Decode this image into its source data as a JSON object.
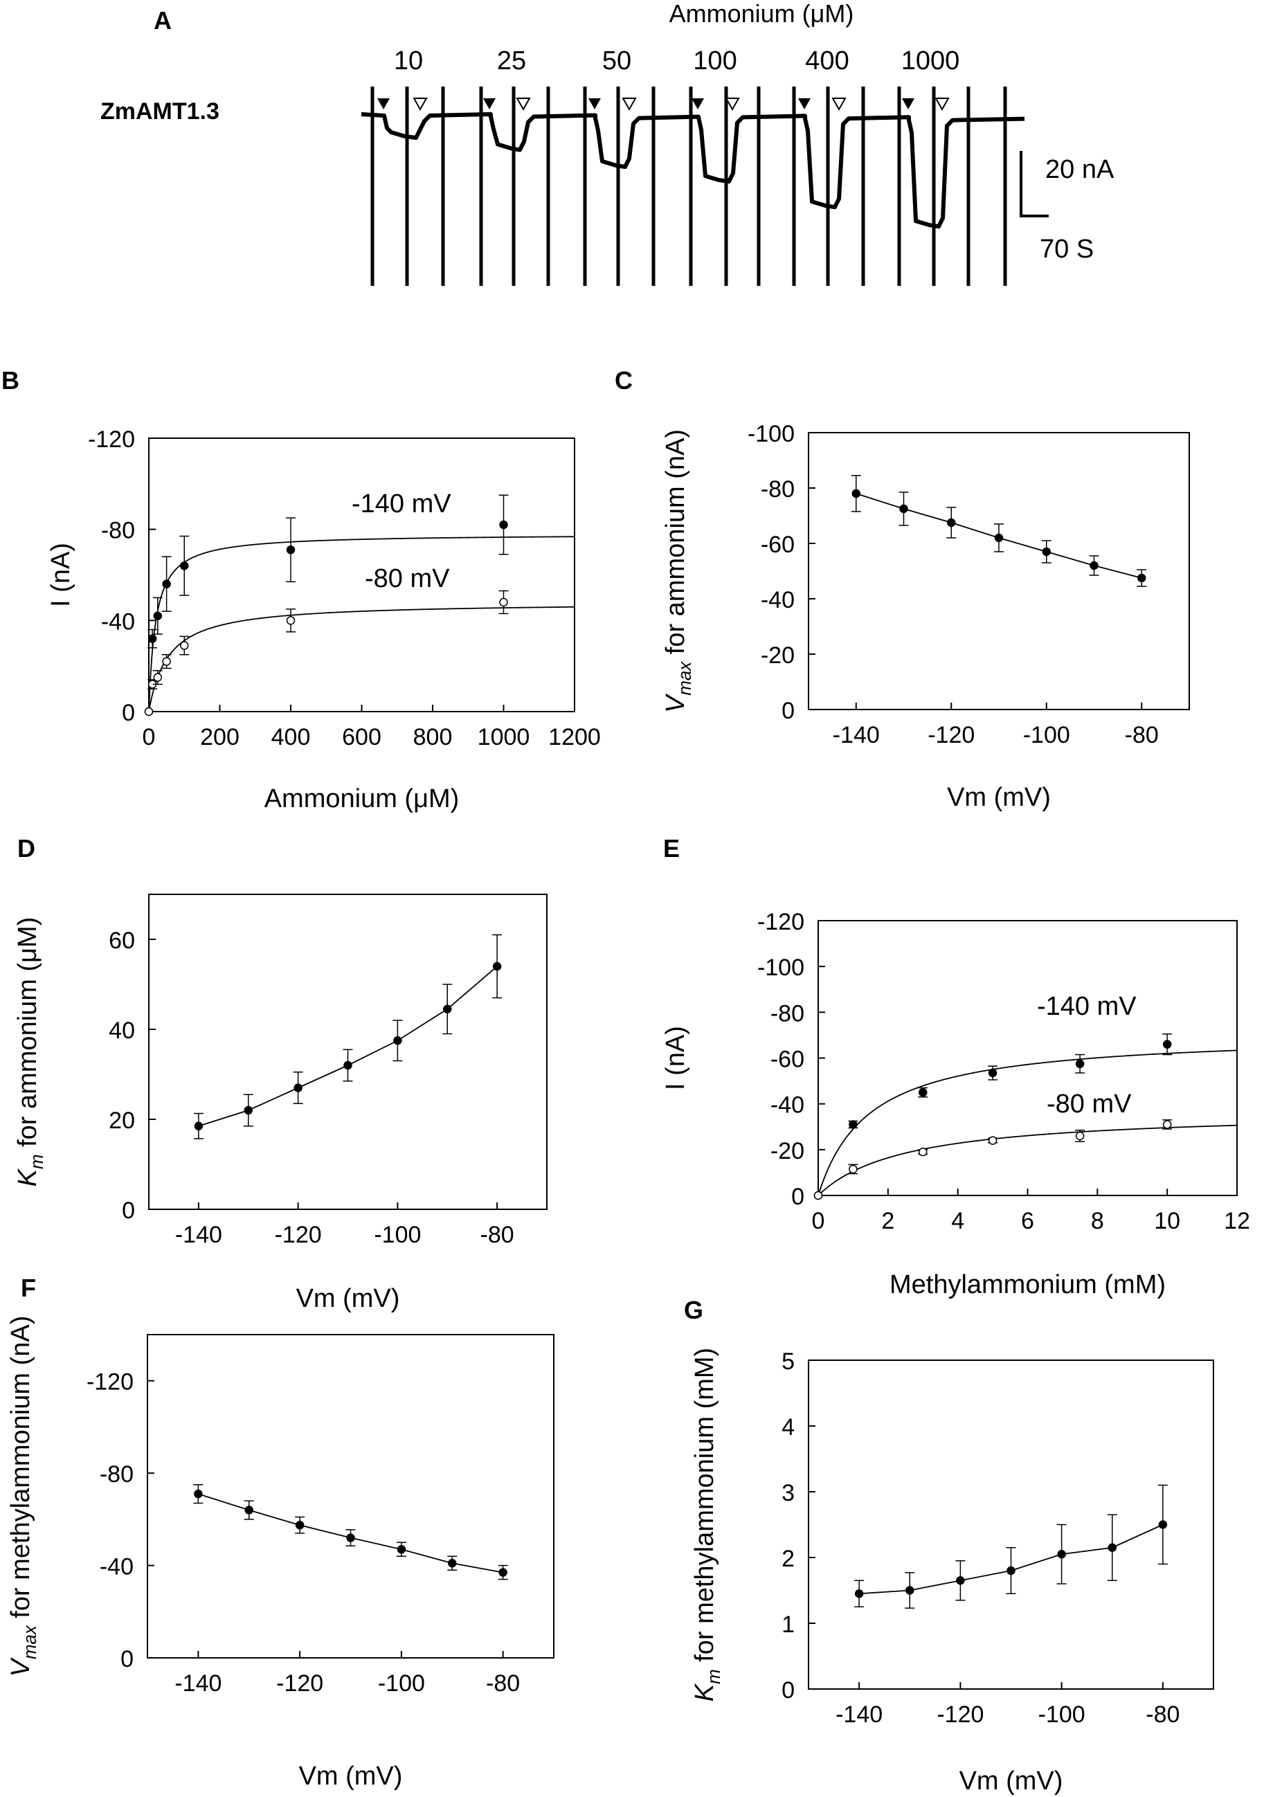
{
  "figure_label": "ZmAMT1.3 electrophysiology figure",
  "colors": {
    "ink": "#000000",
    "open_marker": "#ffffff",
    "background": "#ffffff"
  },
  "chart_data": [
    {
      "panel": "A",
      "type": "line",
      "title": "Ammonium (μM)",
      "trace_label": "ZmAMT1.3",
      "concentrations": [
        "10",
        "25",
        "50",
        "100",
        "400",
        "1000"
      ],
      "current_deflections_nA": [
        -10,
        -15,
        -22,
        -29,
        -40,
        -48
      ],
      "markers": [
        "filled-triangle = on",
        "open-triangle = off"
      ],
      "scale_bar": {
        "current": "20 nA",
        "time": "70 S"
      }
    },
    {
      "panel": "B",
      "type": "scatter",
      "xlabel": "Ammonium (μM)",
      "ylabel": "I (nA)",
      "xlim": [
        0,
        1200
      ],
      "ylim": [
        0,
        -120
      ],
      "xticks": [
        "0",
        "200",
        "400",
        "600",
        "800",
        "1000",
        "1200"
      ],
      "yticks": [
        "0",
        "-40",
        "-80",
        "-120"
      ],
      "series": [
        {
          "name": "-140 mV",
          "marker": "filled",
          "x": [
            0,
            10,
            25,
            50,
            100,
            400,
            1000
          ],
          "y": [
            0,
            -32,
            -42,
            -56,
            -64,
            -71,
            -82
          ],
          "err": [
            0,
            4,
            8,
            12,
            13,
            14,
            13
          ],
          "fit": {
            "vmax": -78,
            "km": 19
          }
        },
        {
          "name": "-80 mV",
          "marker": "open",
          "x": [
            0,
            10,
            25,
            50,
            100,
            400,
            1000
          ],
          "y": [
            0,
            -12,
            -15,
            -22,
            -29,
            -40,
            -48
          ],
          "err": [
            0,
            2,
            3,
            3,
            4,
            5,
            5
          ],
          "fit": {
            "vmax": -48,
            "km": 54
          }
        }
      ]
    },
    {
      "panel": "C",
      "type": "line",
      "xlabel": "Vm (mV)",
      "ylabel_main": "V",
      "ylabel_sub": "max",
      "ylabel_rest": " for ammonium (nA)",
      "xlim": [
        -150,
        -70
      ],
      "ylim": [
        0,
        -100
      ],
      "xticks": [
        "-140",
        "-120",
        "-100",
        "-80"
      ],
      "yticks": [
        "0",
        "-20",
        "-40",
        "-60",
        "-80",
        "-100"
      ],
      "series": [
        {
          "name": "Vmax",
          "x": [
            -140,
            -130,
            -120,
            -110,
            -100,
            -90,
            -80
          ],
          "y": [
            -78,
            -72.5,
            -67.5,
            -62,
            -57,
            -52,
            -47.5
          ],
          "err": [
            6.5,
            6,
            5.5,
            5,
            4,
            3.5,
            3
          ]
        }
      ]
    },
    {
      "panel": "D",
      "type": "line",
      "xlabel": "Vm (mV)",
      "ylabel_main": "K",
      "ylabel_sub": "m",
      "ylabel_rest": " for ammonium (μM)",
      "xlim": [
        -150,
        -70
      ],
      "ylim": [
        0,
        70
      ],
      "xticks": [
        "-140",
        "-120",
        "-100",
        "-80"
      ],
      "yticks": [
        "0",
        "20",
        "40",
        "60"
      ],
      "series": [
        {
          "name": "Km",
          "x": [
            -140,
            -130,
            -120,
            -110,
            -100,
            -90,
            -80
          ],
          "y": [
            18.5,
            22,
            27,
            32,
            37.5,
            44.5,
            54
          ],
          "err": [
            2.8,
            3.5,
            3.5,
            3.5,
            4.5,
            5.5,
            7
          ]
        }
      ]
    },
    {
      "panel": "E",
      "type": "scatter",
      "xlabel": "Methylammonium (mM)",
      "ylabel": "I (nA)",
      "xlim": [
        0,
        12
      ],
      "ylim": [
        0,
        -120
      ],
      "xticks": [
        "0",
        "2",
        "4",
        "6",
        "8",
        "10",
        "12"
      ],
      "yticks": [
        "0",
        "-20",
        "-40",
        "-60",
        "-80",
        "-100",
        "-120"
      ],
      "series": [
        {
          "name": "-140 mV",
          "marker": "filled",
          "x": [
            0,
            1,
            3,
            5,
            7.5,
            10
          ],
          "y": [
            0,
            -31,
            -45,
            -53.5,
            -57.5,
            -66
          ],
          "err": [
            0,
            1.5,
            2,
            3,
            4,
            4.5
          ],
          "fit": {
            "vmax": -71,
            "km": 1.45
          }
        },
        {
          "name": "-80 mV",
          "marker": "open",
          "x": [
            0,
            1,
            3,
            5,
            7.5,
            10
          ],
          "y": [
            0,
            -11.5,
            -19,
            -24,
            -26,
            -31
          ],
          "err": [
            0,
            2,
            1,
            1,
            2.5,
            2
          ],
          "fit": {
            "vmax": -37,
            "km": 2.5
          }
        }
      ]
    },
    {
      "panel": "F",
      "type": "line",
      "xlabel": "Vm (mV)",
      "ylabel_main": "V",
      "ylabel_sub": "max",
      "ylabel_rest": " for methylammonium (nA)",
      "xlim": [
        -150,
        -70
      ],
      "ylim": [
        0,
        -140
      ],
      "xticks": [
        "-140",
        "-120",
        "-100",
        "-80"
      ],
      "yticks": [
        "0",
        "-40",
        "-80",
        "-120"
      ],
      "series": [
        {
          "name": "Vmax",
          "x": [
            -140,
            -130,
            -120,
            -110,
            -100,
            -90,
            -80
          ],
          "y": [
            -71,
            -64,
            -57.5,
            -52,
            -47,
            -41,
            -37
          ],
          "err": [
            4,
            4,
            3.5,
            3.5,
            3,
            3,
            3
          ]
        }
      ]
    },
    {
      "panel": "G",
      "type": "line",
      "xlabel": "Vm (mV)",
      "ylabel_main": "K",
      "ylabel_sub": "m",
      "ylabel_rest": " for methylammonium (mM)",
      "xlim": [
        -150,
        -70
      ],
      "ylim": [
        0,
        5
      ],
      "xticks": [
        "-140",
        "-120",
        "-100",
        "-80"
      ],
      "yticks": [
        "0",
        "1",
        "2",
        "3",
        "4",
        "5"
      ],
      "series": [
        {
          "name": "Km",
          "x": [
            -140,
            -130,
            -120,
            -110,
            -100,
            -90,
            -80
          ],
          "y": [
            1.45,
            1.5,
            1.65,
            1.8,
            2.05,
            2.15,
            2.5
          ],
          "err": [
            0.2,
            0.27,
            0.3,
            0.35,
            0.45,
            0.5,
            0.6
          ]
        }
      ]
    }
  ]
}
